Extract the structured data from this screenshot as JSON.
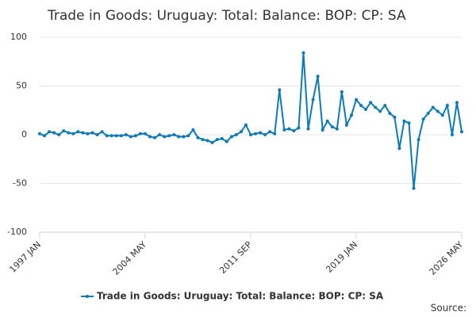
{
  "chart_data": {
    "type": "line",
    "title": "Trade in Goods: Uruguay: Total: Balance: BOP: CP: SA",
    "source": "Source:",
    "categories": [
      "1997 JAN",
      null,
      null,
      null,
      null,
      null,
      null,
      null,
      null,
      null,
      null,
      null,
      null,
      null,
      null,
      null,
      null,
      null,
      null,
      null,
      null,
      null,
      "2004 MAY",
      null,
      null,
      null,
      null,
      null,
      null,
      null,
      null,
      null,
      null,
      null,
      null,
      null,
      null,
      null,
      null,
      null,
      null,
      null,
      null,
      null,
      "2011 SEP",
      null,
      null,
      null,
      null,
      null,
      null,
      null,
      null,
      null,
      null,
      null,
      null,
      null,
      null,
      null,
      null,
      null,
      null,
      null,
      null,
      null,
      "2019 JAN",
      null,
      null,
      null,
      null,
      null,
      null,
      null,
      null,
      null,
      null,
      null,
      null,
      null,
      null,
      null,
      null,
      null,
      null,
      null,
      null,
      null,
      "2026 MAY"
    ],
    "series": [
      {
        "name": "Trade in Goods: Uruguay: Total: Balance: BOP: CP: SA",
        "color": "#0a7ab8",
        "values": [
          1,
          -1,
          3,
          2,
          0,
          4,
          2,
          1,
          3,
          2,
          1,
          2,
          0,
          3,
          -1,
          -1,
          -1,
          -1,
          0,
          -2,
          -1,
          1,
          1,
          -2,
          -3,
          0,
          -2,
          -1,
          0,
          -2,
          -2,
          -1,
          5,
          -3,
          -5,
          -6,
          -8,
          -5,
          -4,
          -7,
          -2,
          0,
          3,
          10,
          0,
          1,
          2,
          0,
          3,
          1,
          46,
          5,
          6,
          4,
          7,
          84,
          6,
          36,
          60,
          5,
          14,
          8,
          6,
          44,
          10,
          20,
          36,
          30,
          26,
          33,
          28,
          24,
          30,
          22,
          18,
          -14,
          14,
          12,
          -55,
          -5,
          16,
          22,
          28,
          24,
          20,
          30,
          0,
          33,
          3
        ]
      }
    ],
    "ylim": [
      -100,
      100
    ],
    "yticks": [
      -100,
      -50,
      0,
      50,
      100
    ],
    "grid": true
  }
}
